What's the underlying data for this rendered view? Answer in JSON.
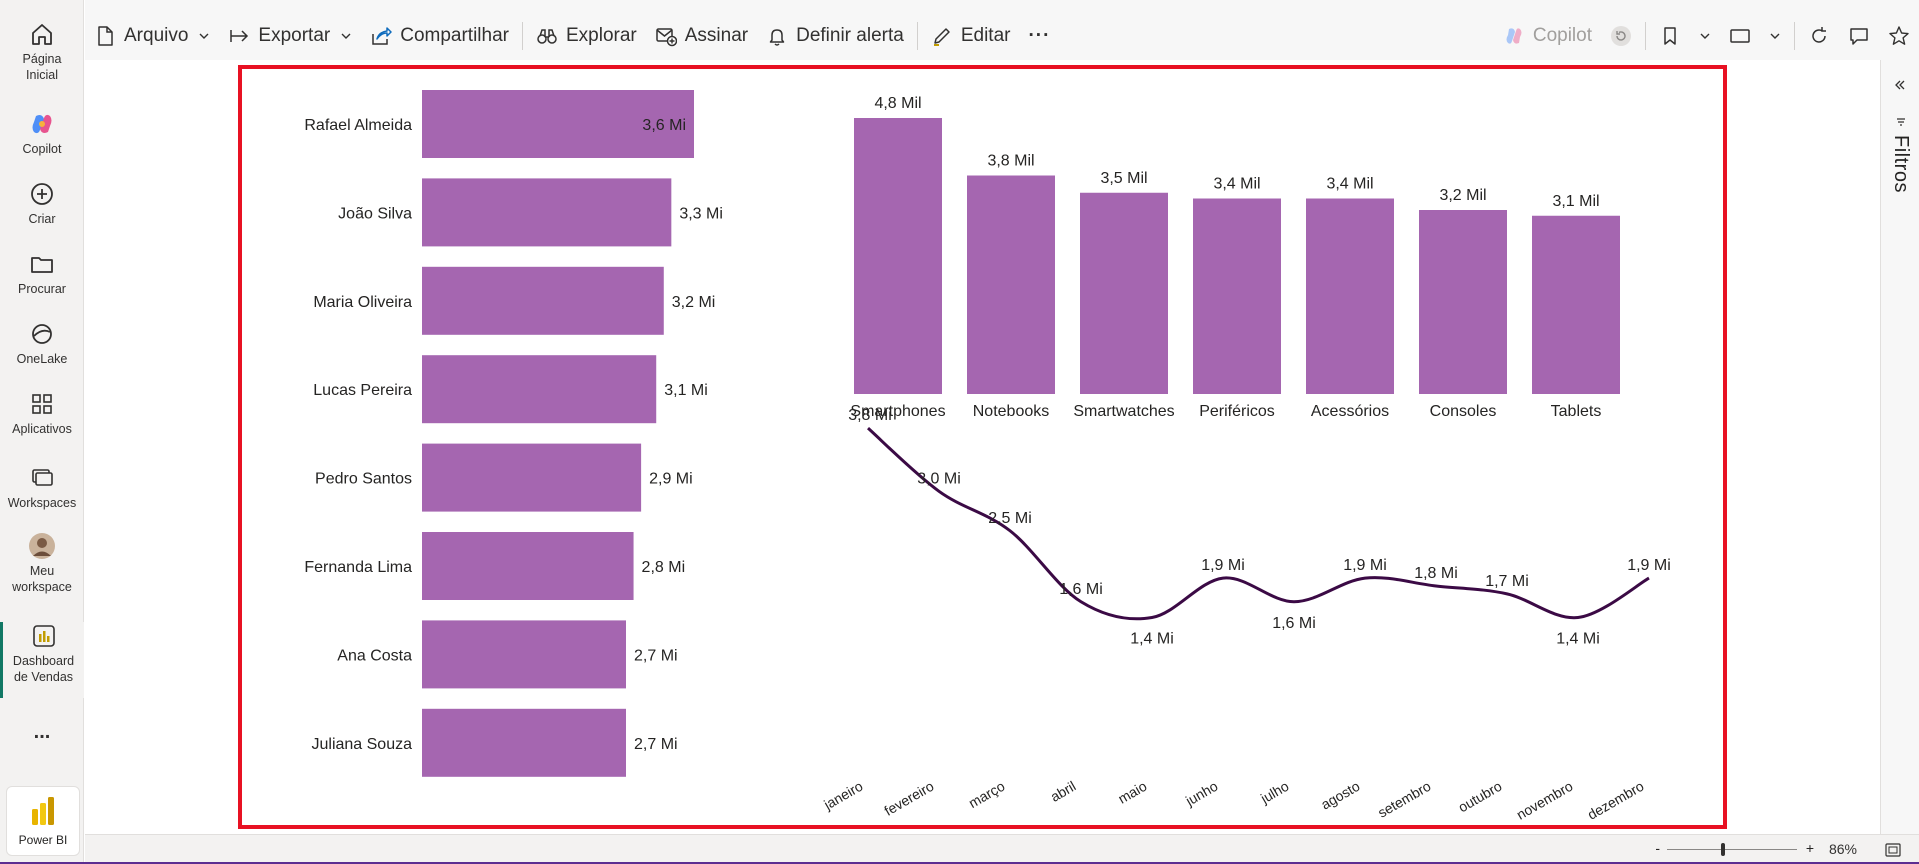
{
  "rail": {
    "items": [
      {
        "label_line1": "Página",
        "label_line2": "Inicial",
        "icon": "home-icon"
      },
      {
        "label_line1": "Copilot",
        "label_line2": "",
        "icon": "copilot-icon"
      },
      {
        "label_line1": "Criar",
        "label_line2": "",
        "icon": "plus-circle-icon"
      },
      {
        "label_line1": "Procurar",
        "label_line2": "",
        "icon": "folder-icon"
      },
      {
        "label_line1": "OneLake",
        "label_line2": "",
        "icon": "onelake-icon"
      },
      {
        "label_line1": "Aplicativos",
        "label_line2": "",
        "icon": "apps-icon"
      },
      {
        "label_line1": "Workspaces",
        "label_line2": "",
        "icon": "workspaces-icon"
      },
      {
        "label_line1": "Meu",
        "label_line2": "workspace",
        "icon": "avatar"
      },
      {
        "label_line1": "Dashboard",
        "label_line2": "de Vendas",
        "icon": "report-icon"
      }
    ],
    "more_label": "...",
    "powerbi_label": "Power BI"
  },
  "toolbar": {
    "arquivo": "Arquivo",
    "exportar": "Exportar",
    "compartilhar": "Compartilhar",
    "explorar": "Explorar",
    "assinar": "Assinar",
    "definir_alerta": "Definir alerta",
    "editar": "Editar",
    "more": "···",
    "copilot": "Copilot"
  },
  "filters_label": "Filtros",
  "status": {
    "zoom_minus": "-",
    "zoom_plus": "+",
    "zoom_value": "86%",
    "zoom_level": 0.43
  },
  "colors": {
    "bar": "#a566b0",
    "line": "#3b0a45",
    "border": "#e81123",
    "accent": "#117865"
  },
  "chart_data": [
    {
      "type": "bar",
      "orientation": "horizontal",
      "categories": [
        "Rafael Almeida",
        "João Silva",
        "Maria Oliveira",
        "Lucas Pereira",
        "Pedro Santos",
        "Fernanda Lima",
        "Ana Costa",
        "Juliana Souza"
      ],
      "values": [
        3.6,
        3.3,
        3.2,
        3.1,
        2.9,
        2.8,
        2.7,
        2.7
      ],
      "data_labels": [
        "3,6 Mi",
        "3,3 Mi",
        "3,2 Mi",
        "3,1 Mi",
        "2,9 Mi",
        "2,8 Mi",
        "2,7 Mi",
        "2,7 Mi"
      ]
    },
    {
      "type": "bar",
      "orientation": "vertical",
      "categories": [
        "Smartphones",
        "Notebooks",
        "Smartwatches",
        "Periféricos",
        "Acessórios",
        "Consoles",
        "Tablets"
      ],
      "values": [
        4.8,
        3.8,
        3.5,
        3.4,
        3.4,
        3.2,
        3.1
      ],
      "data_labels": [
        "4,8 Mil",
        "3,8 Mil",
        "3,5 Mil",
        "3,4 Mil",
        "3,4 Mil",
        "3,2 Mil",
        "3,1 Mil"
      ]
    },
    {
      "type": "line",
      "x": [
        "janeiro",
        "fevereiro",
        "março",
        "abril",
        "maio",
        "junho",
        "julho",
        "agosto",
        "setembro",
        "outubro",
        "novembro",
        "dezembro"
      ],
      "values": [
        3.8,
        3.0,
        2.5,
        1.6,
        1.4,
        1.9,
        1.6,
        1.9,
        1.8,
        1.7,
        1.4,
        1.9
      ],
      "data_labels": [
        "3,8 Mi",
        "3,0 Mi",
        "2,5 Mi",
        "1,6 Mi",
        "1,4 Mi",
        "1,9 Mi",
        "1,6 Mi",
        "1,9 Mi",
        "1,8 Mi",
        "1,7 Mi",
        "1,4 Mi",
        "1,9 Mi"
      ]
    }
  ]
}
